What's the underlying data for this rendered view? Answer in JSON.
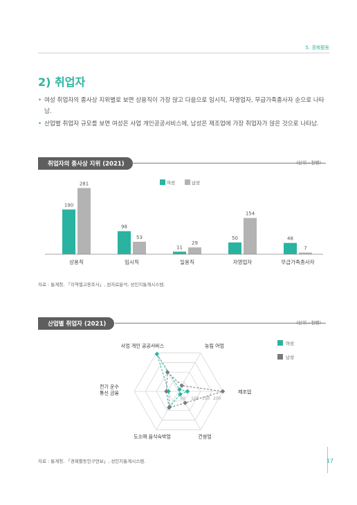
{
  "header": {
    "section": "5. 경제활동",
    "page_number": "17"
  },
  "section_title": "2) 취업자",
  "bullets": [
    "여성 취업자의 종사상 지위별로 보면 상용직이 가장 많고 다음으로 임시직, 자영업자, 무급가족종사자 순으로 나타남.",
    "산업별 취업자 규모를 보면 여성은 사업 개인공공서비스에, 남성은 제조업에 가장 취업자가 많은 것으로 나타남."
  ],
  "chart1": {
    "title": "취업자의 종사상 지위 (2021)",
    "unit": "(단위 : 천명)",
    "source": "자료 : 통계청, 「지역별고용조사」, 원자료분석, 성인지통계시스템."
  },
  "chart2": {
    "title": "산업별 취업자 (2021)",
    "unit": "(단위 : 천명)",
    "source": "자료 : 통계청, 「경제활동인구연보」, 성인지통계시스템."
  },
  "colors": {
    "female": "#2ab3a0",
    "male": "#b3b3b3",
    "accent": "#2ab3a0"
  },
  "chart_data": [
    {
      "type": "bar",
      "title": "취업자의 종사상 지위 (2021)",
      "categories": [
        "상용직",
        "임시직",
        "일용직",
        "자영업자",
        "무급가족종사자"
      ],
      "series": [
        {
          "name": "여성",
          "values": [
            190,
            98,
            11,
            50,
            48
          ]
        },
        {
          "name": "남성",
          "values": [
            281,
            53,
            29,
            154,
            7
          ]
        }
      ],
      "legend": "top-center",
      "ylim": [
        0,
        300
      ]
    },
    {
      "type": "radar",
      "title": "산업별 취업자 (2021)",
      "axes": [
        "사업 개인 공공서비스",
        "농림 어업",
        "제조업",
        "건설업",
        "도소매 음식숙박업",
        "전기 운수 통신 금융"
      ],
      "series": [
        {
          "name": "여성",
          "values": [
            195,
            10,
            40,
            15,
            80,
            45
          ]
        },
        {
          "name": "남성",
          "values": [
            100,
            30,
            200,
            60,
            85,
            55
          ]
        }
      ],
      "rlim": [
        0,
        200
      ],
      "ticks": [
        "50",
        "100",
        "150",
        "200"
      ],
      "legend": "right"
    }
  ]
}
